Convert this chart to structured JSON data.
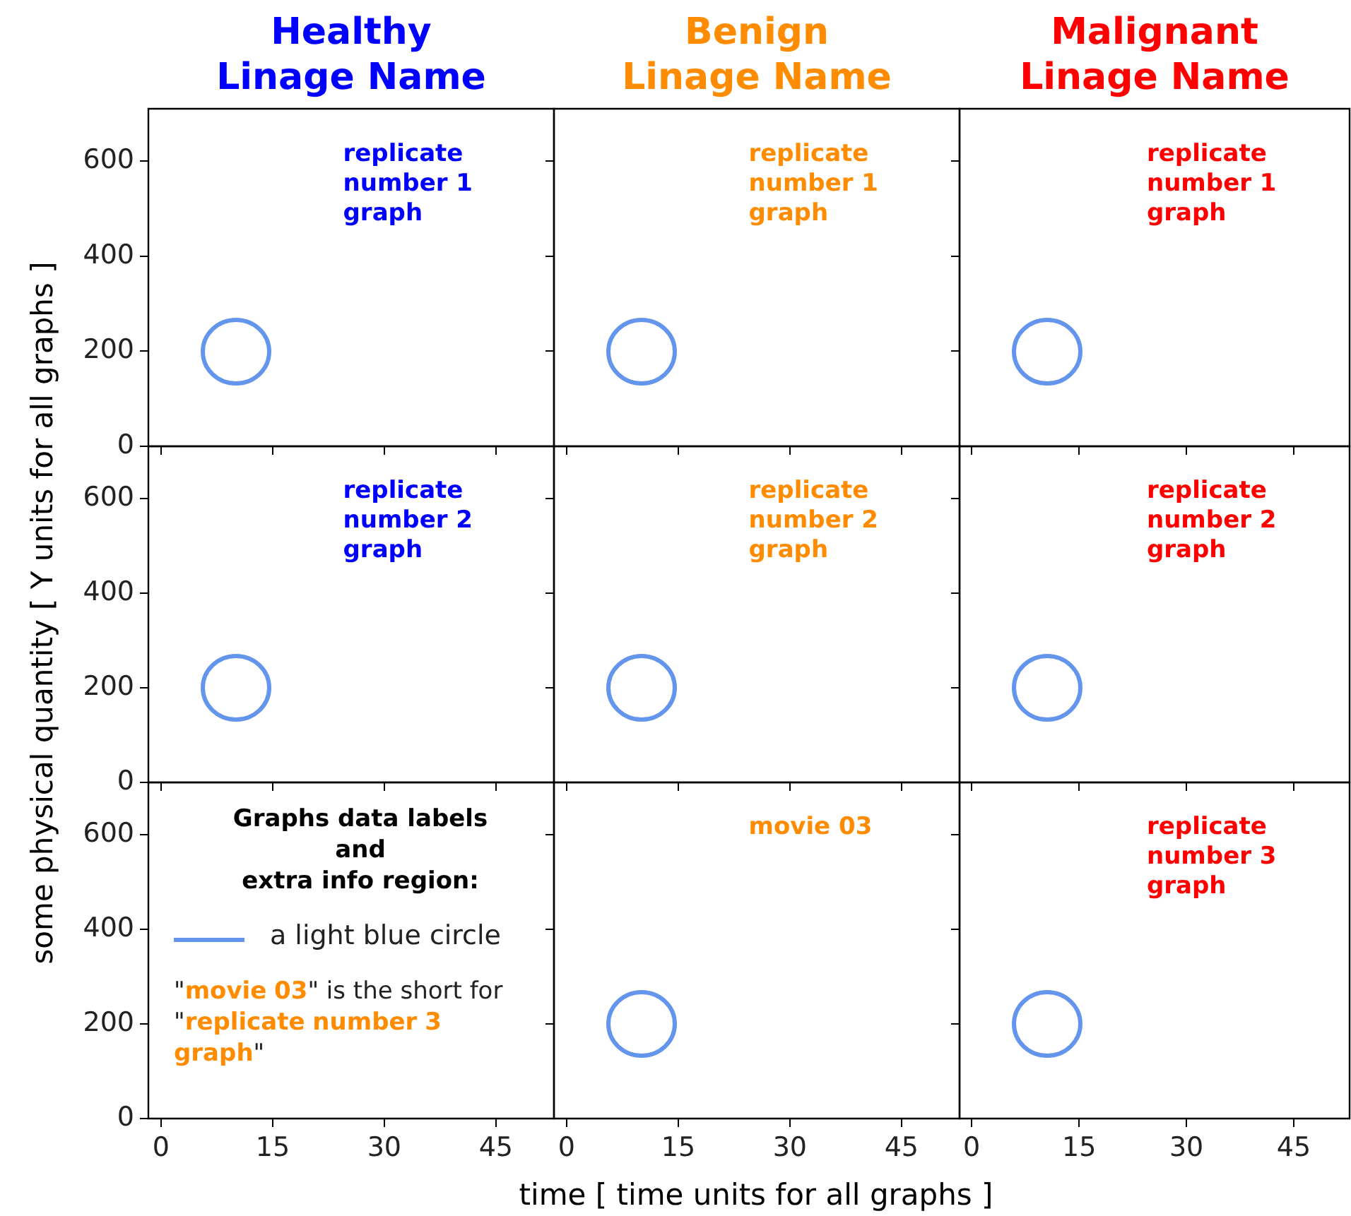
{
  "chart_data": [
    {
      "type": "line",
      "title": "Healthy\nLinage Name",
      "annotations": [
        "replicate number 1 graph"
      ],
      "xlim": [
        -1.7,
        52.8
      ],
      "ylim": [
        0,
        710
      ],
      "xticks": [
        0,
        15,
        30,
        45
      ],
      "yticks": [
        0,
        200,
        400,
        600
      ],
      "tick_labels": "y"
    },
    {
      "type": "line",
      "title": "Benign\nLinage Name",
      "annotations": [
        "replicate number 1 graph"
      ],
      "xlim": [
        -1.7,
        52.8
      ],
      "ylim": [
        0,
        710
      ],
      "xticks": [
        0,
        15,
        30,
        45
      ],
      "yticks": [
        0,
        200,
        400,
        600
      ],
      "tick_labels": false
    },
    {
      "type": "line",
      "title": "Malignant\nLinage Name",
      "annotations": [
        "replicate number 1 graph"
      ],
      "xlim": [
        -1.7,
        52.8
      ],
      "ylim": [
        0,
        710
      ],
      "xticks": [
        0,
        15,
        30,
        45
      ],
      "yticks": [
        0,
        200,
        400,
        600
      ],
      "tick_labels": false
    },
    {
      "type": "line",
      "ylabel": "some physical quantity [ Y units for all graphs ]",
      "annotations": [
        "replicate number 2 graph"
      ],
      "xlim": [
        -1.7,
        52.8
      ],
      "ylim": [
        0,
        710
      ],
      "xticks": [
        0,
        15,
        30,
        45
      ],
      "yticks": [
        0,
        200,
        400,
        600
      ],
      "tick_labels": "y"
    },
    {
      "type": "line",
      "annotations": [
        "replicate number 2 graph"
      ],
      "xlim": [
        -1.7,
        52.8
      ],
      "ylim": [
        0,
        710
      ],
      "xticks": [
        0,
        15,
        30,
        45
      ],
      "yticks": [
        0,
        200,
        400,
        600
      ],
      "tick_labels": false
    },
    {
      "type": "line",
      "annotations": [
        "replicate number 2 graph"
      ],
      "xlim": [
        -1.7,
        52.8
      ],
      "ylim": [
        0,
        710
      ],
      "xticks": [
        0,
        15,
        30,
        45
      ],
      "yticks": [
        0,
        200,
        400,
        600
      ],
      "tick_labels": false
    },
    {
      "type": "line",
      "legend_title": "Graphs data labels\nand\nextra info region:",
      "annotations": [
        "a light blue circle",
        "\"movie 03\" is the short for \"replicate number 3 graph\""
      ],
      "xlim": [
        -1.7,
        52.8
      ],
      "ylim": [
        0,
        710
      ],
      "xticks": [
        0,
        15,
        30,
        45
      ],
      "yticks": [
        0,
        200,
        400,
        600
      ]
    },
    {
      "type": "line",
      "xlabel": "time [ time units for all graphs ]",
      "annotations": [
        "movie 03"
      ],
      "xlim": [
        -1.7,
        52.8
      ],
      "ylim": [
        0,
        710
      ],
      "xticks": [
        0,
        15,
        30,
        45
      ],
      "yticks": [
        0,
        200,
        400,
        600
      ],
      "tick_labels": "x"
    },
    {
      "type": "line",
      "annotations": [
        "replicate number 3 graph"
      ],
      "xlim": [
        -1.7,
        52.8
      ],
      "ylim": [
        0,
        710
      ],
      "xticks": [
        0,
        15,
        30,
        45
      ],
      "yticks": [
        0,
        200,
        400,
        600
      ],
      "tick_labels": "x"
    }
  ]
}
